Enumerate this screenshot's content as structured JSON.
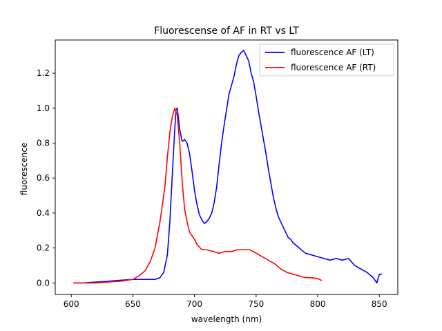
{
  "chart_data": {
    "type": "line",
    "title": "Fluorescense of AF in RT vs LT",
    "xlabel": "wavelength (nm)",
    "ylabel": "fluorescence",
    "xlim": [
      587,
      865
    ],
    "ylim": [
      -0.066,
      1.39
    ],
    "xticks": [
      600,
      650,
      700,
      750,
      800,
      850
    ],
    "yticks": [
      0.0,
      0.2,
      0.4,
      0.6,
      0.8,
      1.0,
      1.2
    ],
    "ytick_labels": [
      "0.0",
      "0.2",
      "0.4",
      "0.6",
      "0.8",
      "1.0",
      "1.2"
    ],
    "grid": false,
    "legend": "top-right",
    "series": [
      {
        "name": "fluorescence AF (LT)",
        "color": "#0000ff",
        "points": [
          [
            602,
            0.0
          ],
          [
            610,
            0.0
          ],
          [
            620,
            0.005
          ],
          [
            630,
            0.01
          ],
          [
            640,
            0.015
          ],
          [
            650,
            0.02
          ],
          [
            660,
            0.02
          ],
          [
            668,
            0.02
          ],
          [
            672,
            0.03
          ],
          [
            675,
            0.06
          ],
          [
            678,
            0.16
          ],
          [
            680,
            0.35
          ],
          [
            682,
            0.62
          ],
          [
            684,
            0.88
          ],
          [
            685,
            0.99
          ],
          [
            686,
            1.0
          ],
          [
            688,
            0.88
          ],
          [
            690,
            0.81
          ],
          [
            692,
            0.82
          ],
          [
            694,
            0.8
          ],
          [
            696,
            0.74
          ],
          [
            698,
            0.64
          ],
          [
            700,
            0.53
          ],
          [
            702,
            0.45
          ],
          [
            704,
            0.39
          ],
          [
            706,
            0.36
          ],
          [
            708,
            0.34
          ],
          [
            710,
            0.35
          ],
          [
            712,
            0.37
          ],
          [
            714,
            0.4
          ],
          [
            716,
            0.46
          ],
          [
            718,
            0.55
          ],
          [
            720,
            0.68
          ],
          [
            722,
            0.8
          ],
          [
            724,
            0.9
          ],
          [
            726,
            0.99
          ],
          [
            728,
            1.08
          ],
          [
            730,
            1.13
          ],
          [
            732,
            1.18
          ],
          [
            734,
            1.25
          ],
          [
            736,
            1.3
          ],
          [
            738,
            1.32
          ],
          [
            740,
            1.33
          ],
          [
            742,
            1.3
          ],
          [
            744,
            1.27
          ],
          [
            746,
            1.2
          ],
          [
            748,
            1.15
          ],
          [
            750,
            1.07
          ],
          [
            752,
            0.98
          ],
          [
            754,
            0.9
          ],
          [
            756,
            0.82
          ],
          [
            758,
            0.74
          ],
          [
            760,
            0.65
          ],
          [
            762,
            0.57
          ],
          [
            764,
            0.49
          ],
          [
            766,
            0.43
          ],
          [
            768,
            0.38
          ],
          [
            770,
            0.35
          ],
          [
            772,
            0.32
          ],
          [
            774,
            0.29
          ],
          [
            776,
            0.26
          ],
          [
            778,
            0.25
          ],
          [
            780,
            0.23
          ],
          [
            785,
            0.2
          ],
          [
            790,
            0.17
          ],
          [
            795,
            0.16
          ],
          [
            800,
            0.15
          ],
          [
            805,
            0.14
          ],
          [
            810,
            0.13
          ],
          [
            815,
            0.14
          ],
          [
            820,
            0.13
          ],
          [
            825,
            0.14
          ],
          [
            830,
            0.1
          ],
          [
            835,
            0.08
          ],
          [
            840,
            0.06
          ],
          [
            845,
            0.03
          ],
          [
            848,
            0.0
          ],
          [
            850,
            0.05
          ],
          [
            852,
            0.05
          ]
        ]
      },
      {
        "name": "fluorescence AF (RT)",
        "color": "#ff0000",
        "points": [
          [
            602,
            0.0
          ],
          [
            610,
            0.0
          ],
          [
            620,
            0.0
          ],
          [
            630,
            0.005
          ],
          [
            640,
            0.01
          ],
          [
            650,
            0.02
          ],
          [
            655,
            0.04
          ],
          [
            660,
            0.07
          ],
          [
            664,
            0.12
          ],
          [
            668,
            0.2
          ],
          [
            672,
            0.35
          ],
          [
            676,
            0.55
          ],
          [
            678,
            0.72
          ],
          [
            680,
            0.86
          ],
          [
            682,
            0.95
          ],
          [
            684,
            1.0
          ],
          [
            686,
            0.96
          ],
          [
            688,
            0.8
          ],
          [
            690,
            0.58
          ],
          [
            692,
            0.42
          ],
          [
            694,
            0.35
          ],
          [
            696,
            0.29
          ],
          [
            700,
            0.25
          ],
          [
            702,
            0.22
          ],
          [
            706,
            0.19
          ],
          [
            710,
            0.19
          ],
          [
            715,
            0.18
          ],
          [
            720,
            0.17
          ],
          [
            725,
            0.18
          ],
          [
            730,
            0.18
          ],
          [
            735,
            0.19
          ],
          [
            740,
            0.19
          ],
          [
            745,
            0.19
          ],
          [
            750,
            0.17
          ],
          [
            755,
            0.15
          ],
          [
            760,
            0.13
          ],
          [
            765,
            0.11
          ],
          [
            770,
            0.08
          ],
          [
            775,
            0.06
          ],
          [
            780,
            0.05
          ],
          [
            785,
            0.04
          ],
          [
            790,
            0.03
          ],
          [
            795,
            0.03
          ],
          [
            800,
            0.025
          ],
          [
            803,
            0.015
          ]
        ]
      }
    ]
  }
}
